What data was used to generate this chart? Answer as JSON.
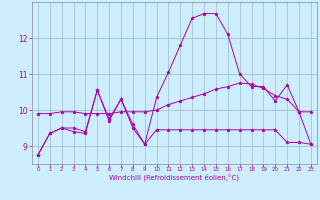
{
  "xlabel": "Windchill (Refroidissement éolien,°C)",
  "xlim": [
    -0.5,
    23.5
  ],
  "ylim": [
    8.5,
    13.0
  ],
  "yticks": [
    9,
    10,
    11,
    12
  ],
  "xticks": [
    0,
    1,
    2,
    3,
    4,
    5,
    6,
    7,
    8,
    9,
    10,
    11,
    12,
    13,
    14,
    15,
    16,
    17,
    18,
    19,
    20,
    21,
    22,
    23
  ],
  "background_color": "#cceeff",
  "line_color": "#aa00aa",
  "grid_color": "#99aabb",
  "series": [
    [
      8.75,
      9.35,
      9.5,
      9.5,
      9.4,
      10.55,
      9.75,
      10.3,
      9.5,
      9.05,
      9.45,
      9.45,
      9.45,
      9.45,
      9.45,
      9.45,
      9.45,
      9.45,
      9.45,
      9.45,
      9.45,
      9.1,
      9.1,
      9.05
    ],
    [
      9.9,
      9.9,
      9.95,
      9.95,
      9.9,
      9.9,
      9.9,
      9.95,
      9.95,
      9.95,
      10.0,
      10.15,
      10.25,
      10.35,
      10.45,
      10.58,
      10.65,
      10.75,
      10.72,
      10.6,
      10.4,
      10.3,
      9.95,
      9.95
    ],
    [
      8.75,
      9.35,
      9.5,
      9.4,
      9.35,
      10.55,
      9.7,
      10.3,
      9.6,
      9.05,
      10.35,
      11.05,
      11.8,
      12.55,
      12.68,
      12.68,
      12.1,
      11.0,
      10.65,
      10.65,
      10.25,
      10.7,
      9.95,
      9.05
    ]
  ]
}
